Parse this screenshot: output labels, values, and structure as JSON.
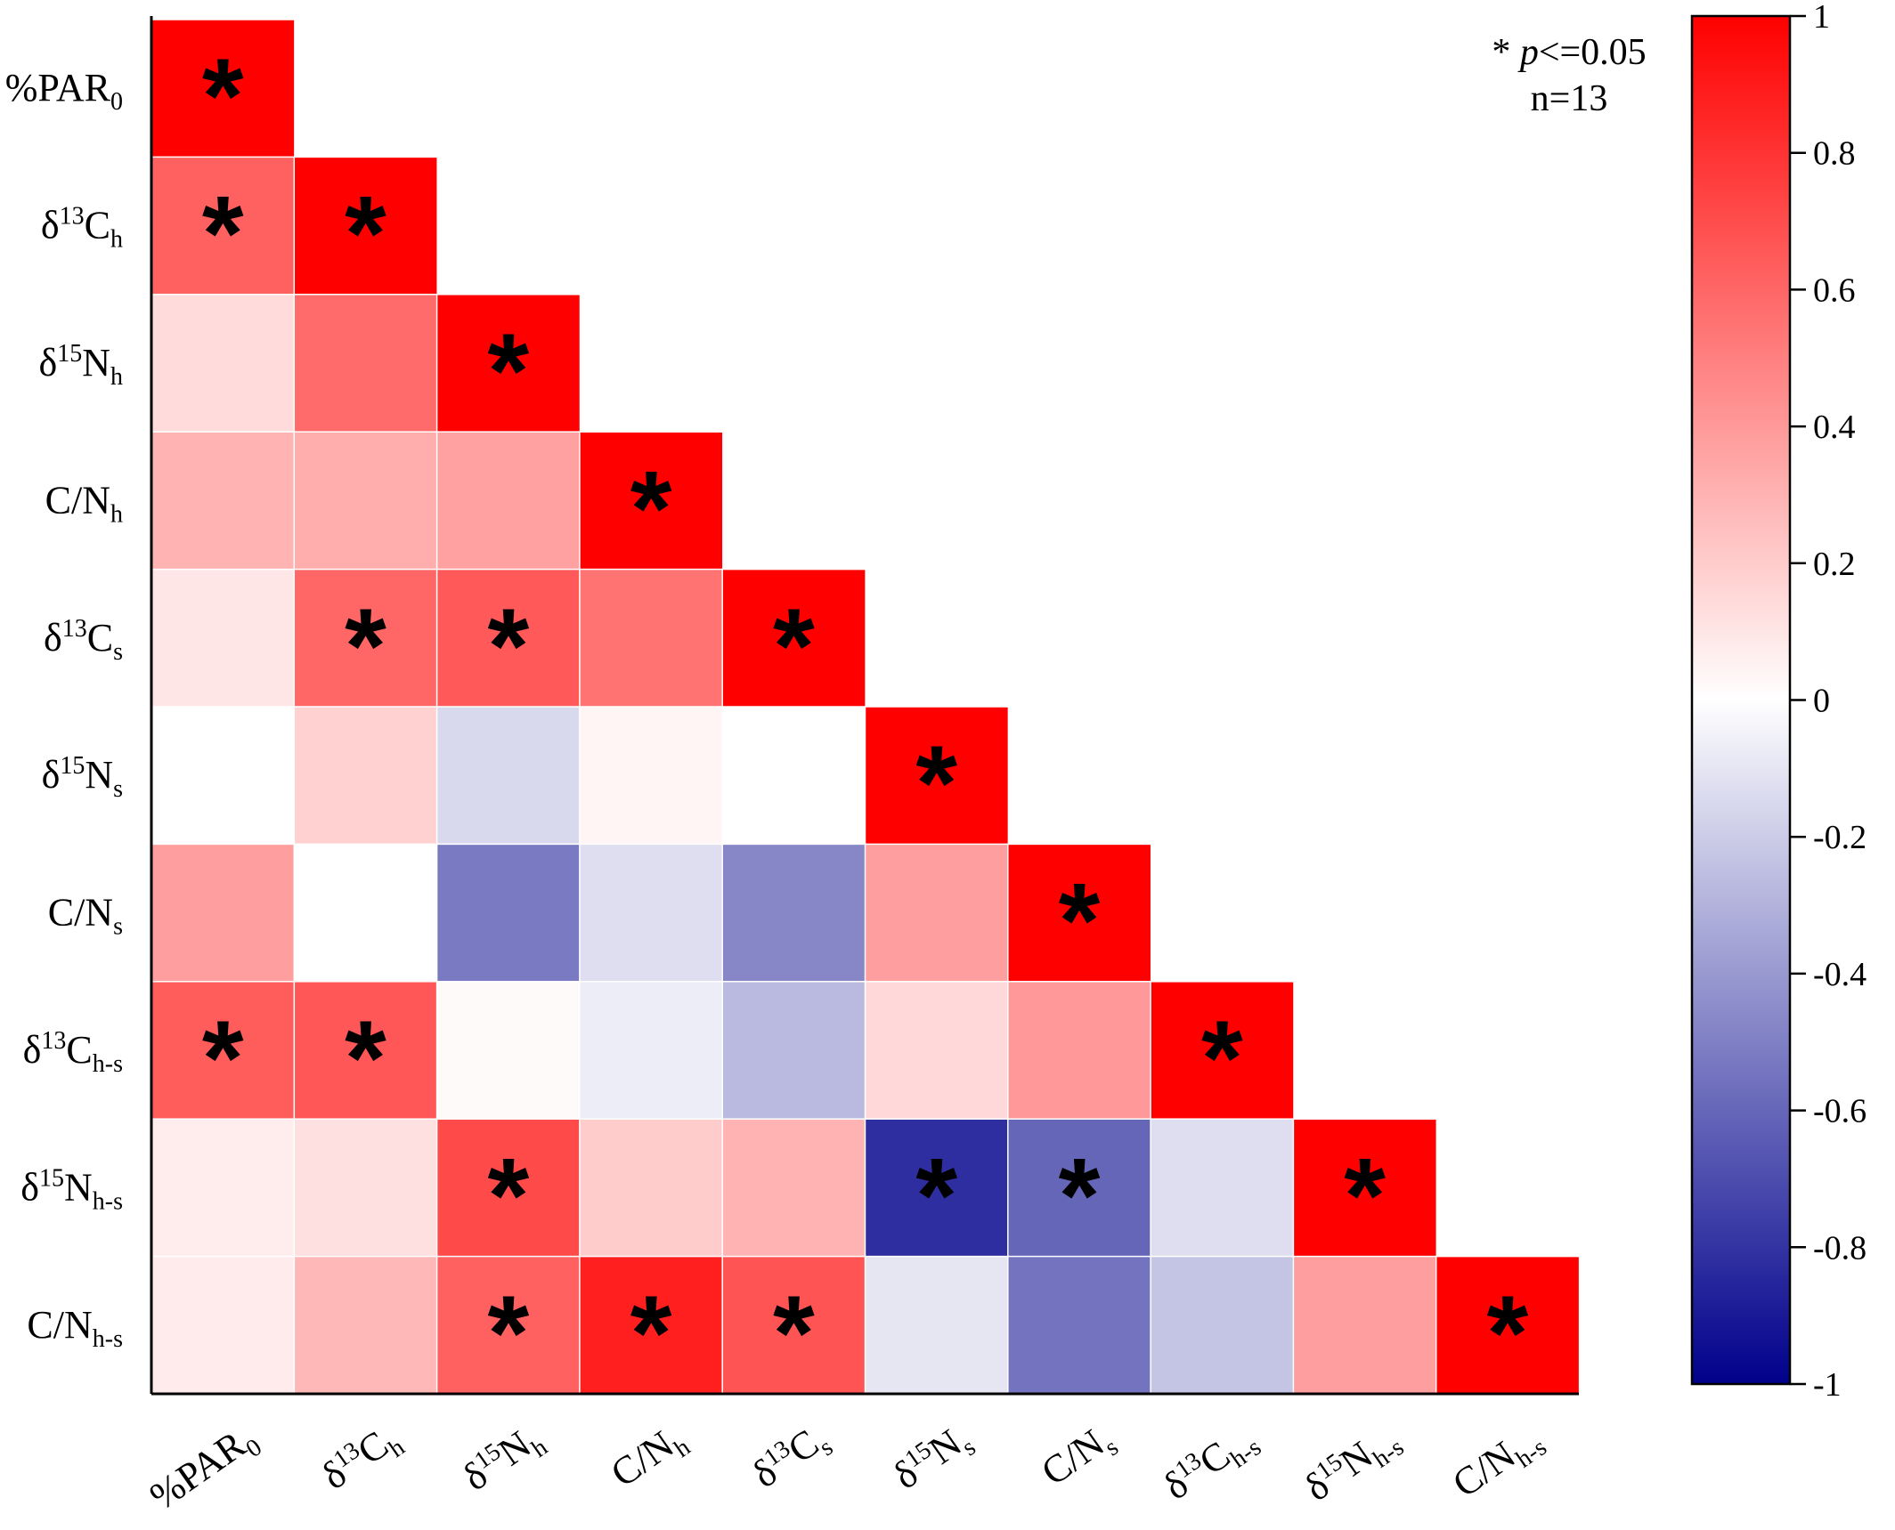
{
  "chart_data": {
    "type": "heatmap",
    "layout": "lower-triangle correlation matrix",
    "variables": [
      {
        "base": "%PAR",
        "sup": "",
        "sub": "0"
      },
      {
        "base": "δ",
        "sup": "13",
        "base2": "C",
        "sub": "h"
      },
      {
        "base": "δ",
        "sup": "15",
        "base2": "N",
        "sub": "h"
      },
      {
        "base": "C/N",
        "sup": "",
        "sub": "h"
      },
      {
        "base": "δ",
        "sup": "13",
        "base2": "C",
        "sub": "s"
      },
      {
        "base": "δ",
        "sup": "15",
        "base2": "N",
        "sub": "s"
      },
      {
        "base": "C/N",
        "sup": "",
        "sub": "s"
      },
      {
        "base": "δ",
        "sup": "13",
        "base2": "C",
        "sub": "h-s"
      },
      {
        "base": "δ",
        "sup": "15",
        "base2": "N",
        "sub": "h-s"
      },
      {
        "base": "C/N",
        "sup": "",
        "sub": "h-s"
      }
    ],
    "matrix": [
      [
        1.0
      ],
      [
        0.62,
        1.0
      ],
      [
        0.14,
        0.58,
        1.0
      ],
      [
        0.3,
        0.32,
        0.37,
        1.0
      ],
      [
        0.1,
        0.6,
        0.65,
        0.55,
        1.0
      ],
      [
        0.0,
        0.18,
        -0.15,
        0.04,
        0.0,
        1.0
      ],
      [
        0.38,
        0.0,
        -0.52,
        -0.13,
        -0.47,
        0.38,
        1.0
      ],
      [
        0.64,
        0.66,
        0.02,
        -0.07,
        -0.27,
        0.15,
        0.4,
        1.0
      ],
      [
        0.07,
        0.12,
        0.71,
        0.2,
        0.3,
        -0.82,
        -0.6,
        -0.13,
        1.0
      ],
      [
        0.08,
        0.28,
        0.62,
        0.88,
        0.67,
        -0.1,
        -0.55,
        -0.23,
        0.38,
        1.0
      ]
    ],
    "significant": [
      [
        true
      ],
      [
        true,
        true
      ],
      [
        false,
        false,
        true
      ],
      [
        false,
        false,
        false,
        true
      ],
      [
        false,
        true,
        true,
        false,
        true
      ],
      [
        false,
        false,
        false,
        false,
        false,
        true
      ],
      [
        false,
        false,
        false,
        false,
        false,
        false,
        true
      ],
      [
        true,
        true,
        false,
        false,
        false,
        false,
        false,
        true
      ],
      [
        false,
        false,
        true,
        false,
        false,
        true,
        true,
        false,
        true
      ],
      [
        false,
        false,
        true,
        true,
        true,
        false,
        false,
        false,
        false,
        true
      ]
    ],
    "significance_marker": "*",
    "note_line1_marker": "* ",
    "note_line1_var": "p",
    "note_line1_rest": "<=0.05",
    "note_line2": "n=13",
    "colorbar": {
      "min": -1,
      "max": 1,
      "ticks": [
        "1",
        "0.8",
        "0.6",
        "0.4",
        "0.2",
        "0",
        "-0.2",
        "-0.4",
        "-0.6",
        "-0.8",
        "-1"
      ],
      "colors": {
        "min": "#00008B",
        "mid": "#FFFFFF",
        "max": "#FF0000"
      }
    }
  }
}
